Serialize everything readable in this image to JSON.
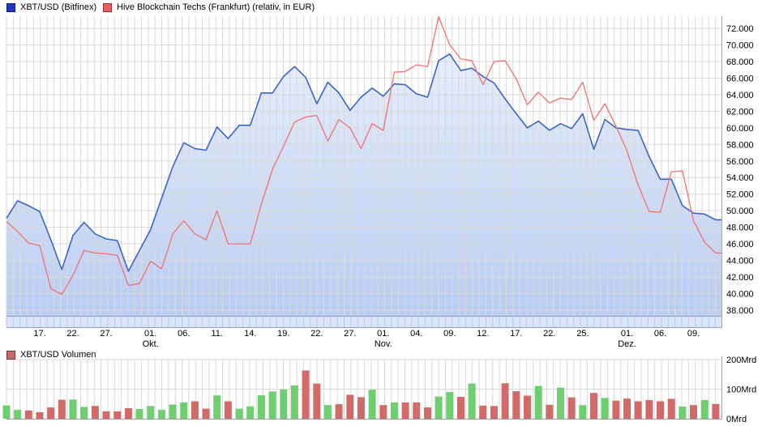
{
  "chart_data": [
    {
      "type": "line",
      "title": "",
      "x_unit": "trading-days Sep–Dez",
      "grid": true,
      "legend_position": "top",
      "ylim": [
        38000,
        72000
      ],
      "y_tick_step": 2000,
      "y_tick_labels": [
        "72.000",
        "70.000",
        "68.000",
        "66.000",
        "64.000",
        "62.000",
        "60.000",
        "58.000",
        "56.000",
        "54.000",
        "52.000",
        "50.000",
        "48.000",
        "46.000",
        "44.000",
        "42.000",
        "40.000",
        "38.000"
      ],
      "x_tick_labels": [
        {
          "i": 3,
          "d": "17."
        },
        {
          "i": 6,
          "d": "22."
        },
        {
          "i": 9,
          "d": "27."
        },
        {
          "i": 13,
          "d": "01.",
          "m": "Okt."
        },
        {
          "i": 16,
          "d": "06."
        },
        {
          "i": 19,
          "d": "11."
        },
        {
          "i": 22,
          "d": "14."
        },
        {
          "i": 25,
          "d": "19."
        },
        {
          "i": 28,
          "d": "22."
        },
        {
          "i": 31,
          "d": "27."
        },
        {
          "i": 34,
          "d": "01.",
          "m": "Nov."
        },
        {
          "i": 37,
          "d": "04."
        },
        {
          "i": 40,
          "d": "09."
        },
        {
          "i": 43,
          "d": "12."
        },
        {
          "i": 46,
          "d": "17."
        },
        {
          "i": 49,
          "d": "22."
        },
        {
          "i": 52,
          "d": "25."
        },
        {
          "i": 56,
          "d": "01.",
          "m": "Dez."
        },
        {
          "i": 59,
          "d": "06."
        },
        {
          "i": 62,
          "d": "09."
        }
      ],
      "area_fill_top": "#edf2fd",
      "area_fill_bottom": "#b9cdf3",
      "series": [
        {
          "name": "XBT/USD (Bitfinex)",
          "legend_color": "#2036c8",
          "color": "#3a66c2",
          "area": true,
          "values": [
            49100,
            51200,
            50600,
            49900,
            46500,
            42900,
            47000,
            48600,
            47200,
            46600,
            46400,
            42700,
            45200,
            47700,
            51500,
            55300,
            58200,
            57500,
            57300,
            60100,
            58700,
            60300,
            60300,
            64200,
            64200,
            66200,
            67400,
            66100,
            62900,
            65500,
            64200,
            62100,
            63700,
            64800,
            63800,
            65300,
            65200,
            64100,
            63700,
            68100,
            68900,
            66900,
            67200,
            66200,
            65400,
            63500,
            61700,
            60000,
            60800,
            59700,
            60500,
            59900,
            61700,
            57400,
            61000,
            60000,
            59800,
            59700,
            56500,
            53800,
            53800,
            50600,
            49700,
            49600,
            48900
          ]
        },
        {
          "name": "Hive Blockchain Techs (Frankfurt) (relativ, in EUR)",
          "legend_color": "#ef5a5a",
          "color": "#f17070",
          "area": false,
          "values": [
            48700,
            47500,
            46100,
            45800,
            40600,
            39900,
            42200,
            45200,
            44900,
            44800,
            44600,
            41000,
            41200,
            43900,
            43000,
            47200,
            48800,
            47200,
            46500,
            50000,
            46000,
            46000,
            46000,
            50800,
            55000,
            57800,
            60700,
            61300,
            61500,
            58400,
            61000,
            60000,
            57500,
            60500,
            59700,
            66700,
            66800,
            67600,
            67400,
            73400,
            70000,
            68300,
            68100,
            65200,
            68000,
            68100,
            65900,
            62800,
            64300,
            63000,
            63600,
            63400,
            65500,
            60900,
            62900,
            60200,
            57200,
            53100,
            49900,
            49800,
            54700,
            54800,
            48800,
            46200,
            44900
          ]
        }
      ]
    },
    {
      "type": "bar",
      "name": "XBT/USD Volumen",
      "legend_color": "#c96b6b",
      "unit": "Mrd",
      "ylim": [
        0,
        200
      ],
      "y_tick_labels": [
        "200Mrd",
        "100Mrd",
        "0Mrd"
      ],
      "palette": {
        "g": "#6fce6f",
        "r": "#d16b69"
      },
      "values": [
        45,
        30,
        28,
        22,
        38,
        64,
        65,
        40,
        43,
        25,
        25,
        36,
        33,
        43,
        30,
        48,
        55,
        59,
        34,
        79,
        59,
        34,
        42,
        79,
        92,
        99,
        113,
        163,
        119,
        46,
        49,
        81,
        73,
        98,
        46,
        55,
        55,
        55,
        38,
        75,
        90,
        74,
        119,
        44,
        43,
        120,
        93,
        78,
        111,
        47,
        105,
        72,
        46,
        87,
        70,
        61,
        68,
        59,
        63,
        59,
        67,
        41,
        46,
        63,
        50
      ],
      "colors": [
        "g",
        "g",
        "r",
        "r",
        "r",
        "r",
        "g",
        "g",
        "r",
        "r",
        "r",
        "r",
        "g",
        "g",
        "g",
        "g",
        "g",
        "r",
        "r",
        "g",
        "r",
        "g",
        "g",
        "g",
        "g",
        "g",
        "g",
        "r",
        "r",
        "g",
        "r",
        "r",
        "r",
        "g",
        "r",
        "g",
        "r",
        "r",
        "r",
        "g",
        "g",
        "r",
        "g",
        "r",
        "r",
        "r",
        "r",
        "r",
        "g",
        "r",
        "g",
        "r",
        "g",
        "r",
        "g",
        "r",
        "r",
        "r",
        "r",
        "r",
        "r",
        "g",
        "r",
        "g",
        "r"
      ]
    }
  ],
  "ui_colors": {
    "gridline": "#d9d9d9",
    "strip_bg": "#dbe4f9",
    "strip_tick": "#bac9ef",
    "strip_border": "#8f9dc6",
    "axis_border": "#a8a8a8",
    "text": "#000000"
  }
}
